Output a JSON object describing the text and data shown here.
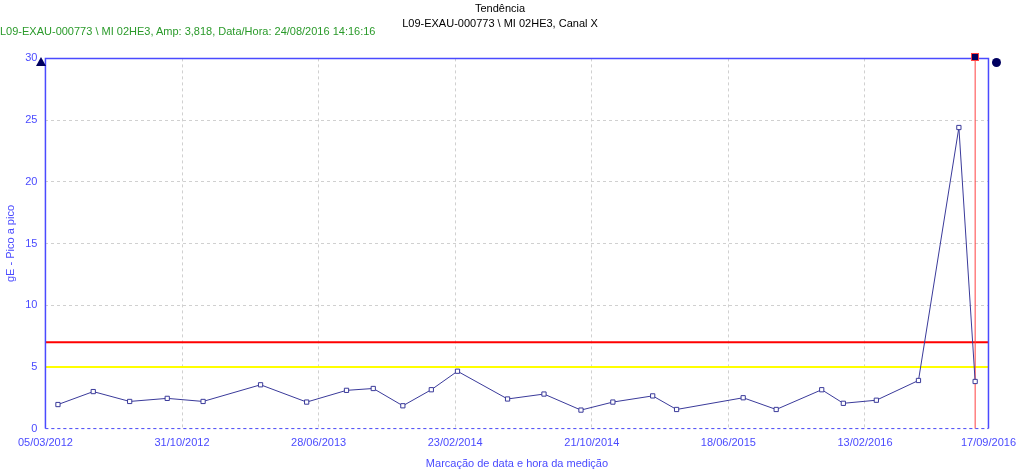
{
  "chart_data": {
    "type": "line",
    "title": "Tendência",
    "subtitle": "L09-EXAU-000773 \\ MI 02HE3, Canal X",
    "xlabel": "Marcação de data e hora da medição",
    "ylabel": "gE - Pico a pico",
    "annotations": [
      "L09-EXAU-000773 \\ MI 02HE3, Amp: 3,818, Data/Hora: 24/08/2016 14:16:16"
    ],
    "x": [
      "2012-03-27",
      "2012-05-28",
      "2012-07-31",
      "2012-10-05",
      "2012-12-07",
      "2013-03-18",
      "2013-06-07",
      "2013-08-16",
      "2013-10-02",
      "2013-11-23",
      "2014-01-12",
      "2014-02-27",
      "2014-05-26",
      "2014-07-29",
      "2014-10-02",
      "2014-11-27",
      "2015-02-05",
      "2015-03-19",
      "2015-07-14",
      "2015-09-10",
      "2015-11-29",
      "2016-01-06",
      "2016-03-04",
      "2016-05-17",
      "2016-07-27",
      "2016-08-24T14:16"
    ],
    "series": [
      {
        "color": "#3a3a9a",
        "values": [
          1.95,
          3.0,
          2.2,
          2.45,
          2.2,
          3.55,
          2.15,
          3.1,
          3.25,
          1.85,
          3.15,
          4.65,
          2.4,
          2.8,
          1.5,
          2.15,
          2.65,
          1.55,
          2.5,
          1.55,
          3.15,
          2.05,
          2.3,
          3.9,
          24.4,
          3.818
        ]
      }
    ],
    "xlim": [
      "2012-03-05",
      "2016-09-17"
    ],
    "xticks": [
      {
        "value": "2012-03-05",
        "label": "05/03/2012"
      },
      {
        "value": "2012-10-31",
        "label": "31/10/2012"
      },
      {
        "value": "2013-06-28",
        "label": "28/06/2013"
      },
      {
        "value": "2014-02-23",
        "label": "23/02/2014"
      },
      {
        "value": "2014-10-21",
        "label": "21/10/2014"
      },
      {
        "value": "2015-06-18",
        "label": "18/06/2015"
      },
      {
        "value": "2016-02-13",
        "label": "13/02/2016"
      },
      {
        "value": "2016-09-17",
        "label": "17/09/2016"
      }
    ],
    "ylim": [
      0,
      30
    ],
    "yticks": [
      0,
      5,
      10,
      15,
      20,
      25,
      30
    ],
    "ref_lines": [
      {
        "axis": "y",
        "value": 7,
        "color": "#ff0000"
      },
      {
        "axis": "y",
        "value": 5,
        "color": "#ffff00"
      },
      {
        "axis": "x",
        "value": "2016-08-24T14:16",
        "color": "#ff4040"
      }
    ],
    "grid": true,
    "legend": false,
    "marker": "square",
    "line_style": "solid"
  }
}
